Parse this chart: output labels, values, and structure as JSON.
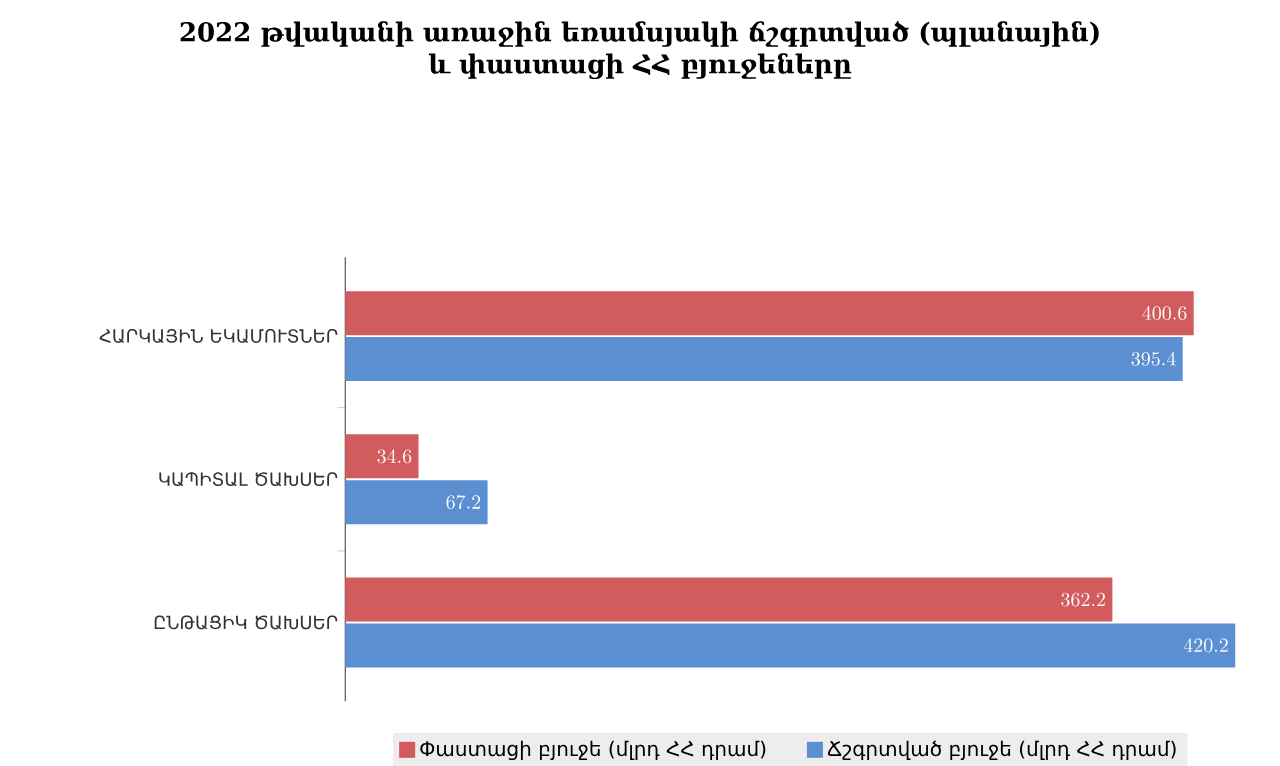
{
  "chart_data": {
    "type": "bar",
    "orientation": "horizontal",
    "title": "2022 թվականի առաջին եռամսյակի ճշգրտված (պլանային)\nև փաստացի ՀՀ բյուջեները",
    "categories": [
      "ՀԱՐԿԱՅԻՆ ԵԿԱՄՈՒՏՆԵՐ",
      "ԿԱՊԻՏԱԼ ԾԱԽՍԵՐ",
      "ԸՆԹԱՑԻԿ ԾԱԽՍԵՐ"
    ],
    "series": [
      {
        "name": "Փաստացի բյուջե (մլրդ ՀՀ դրամ)",
        "color": "#d25b5e",
        "values": [
          400.6,
          34.6,
          362.2
        ]
      },
      {
        "name": "Ճշգրտված բյուջե (մլրդ ՀՀ դրամ)",
        "color": "#5b8fd2",
        "values": [
          395.4,
          67.2,
          420.2
        ]
      }
    ],
    "data_labels": true,
    "legend": "bottom"
  }
}
